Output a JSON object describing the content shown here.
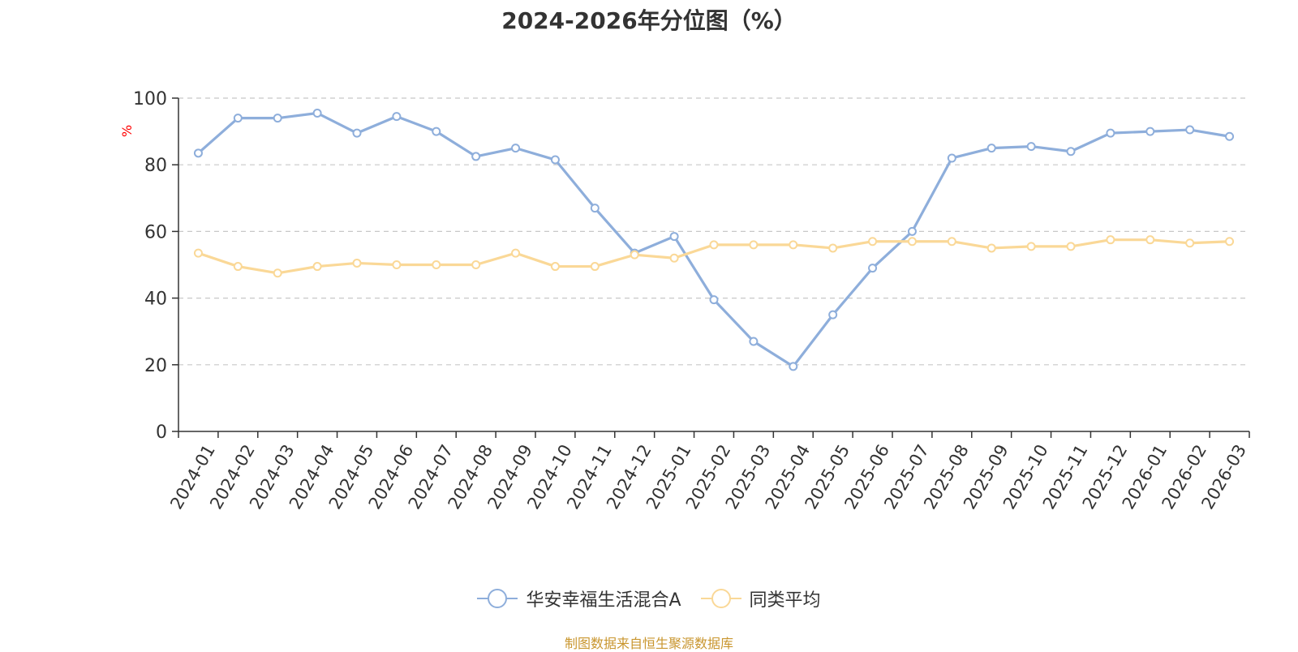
{
  "chart_data": {
    "type": "line",
    "title": "2024-2026年分位图（%）",
    "ylabel": "%",
    "xlabel": "",
    "ylim": [
      0,
      100
    ],
    "yticks": [
      0,
      20,
      40,
      60,
      80,
      100
    ],
    "grid": true,
    "legend_position": "bottom",
    "categories": [
      "2024-01",
      "2024-02",
      "2024-03",
      "2024-04",
      "2024-05",
      "2024-06",
      "2024-07",
      "2024-08",
      "2024-09",
      "2024-10",
      "2024-11",
      "2024-12",
      "2025-01",
      "2025-02",
      "2025-03",
      "2025-04",
      "2025-05",
      "2025-06",
      "2025-07",
      "2025-08",
      "2025-09",
      "2025-10",
      "2025-11",
      "2025-12",
      "2026-01",
      "2026-02",
      "2026-03"
    ],
    "series": [
      {
        "name": "华安幸福生活混合A",
        "color": "#8eaedb",
        "values": [
          83.5,
          94,
          94,
          95.5,
          89.5,
          94.5,
          90,
          82.5,
          85,
          81.5,
          67,
          53.5,
          58.5,
          39.5,
          27,
          19.5,
          35,
          49,
          60,
          82,
          85,
          85.5,
          84,
          89.5,
          90,
          90.5,
          88.5
        ]
      },
      {
        "name": "同类平均",
        "color": "#fad897",
        "values": [
          53.5,
          49.5,
          47.5,
          49.5,
          50.5,
          50,
          50,
          50,
          53.5,
          49.5,
          49.5,
          53,
          52,
          56,
          56,
          56,
          55,
          57,
          57,
          57,
          55,
          55.5,
          55.5,
          57.5,
          57.5,
          56.5,
          57
        ]
      }
    ]
  },
  "source_note": "制图数据来自恒生聚源数据库"
}
